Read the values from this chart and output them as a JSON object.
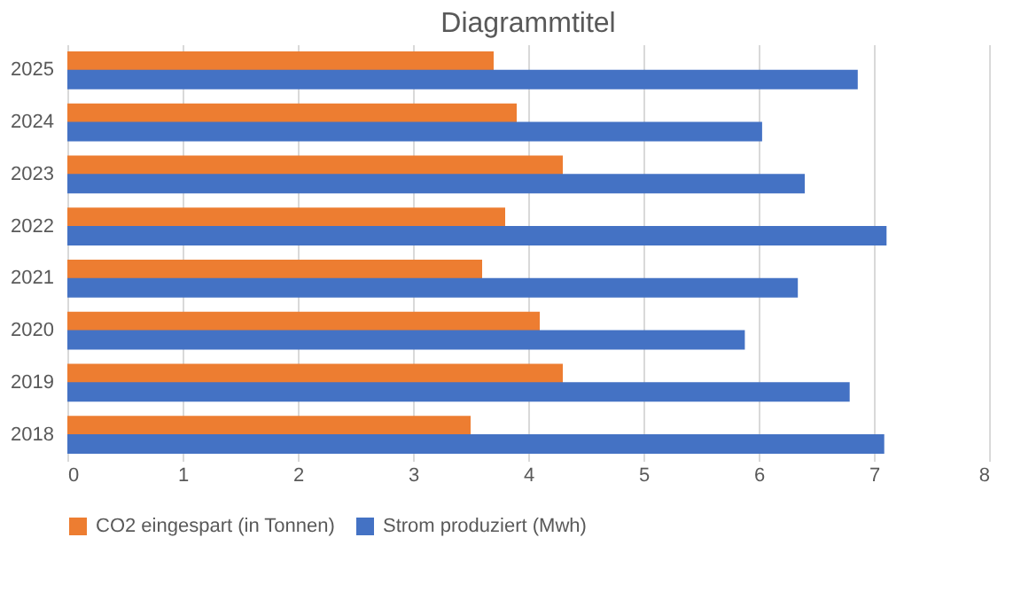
{
  "chart_data": {
    "type": "bar",
    "orientation": "horizontal",
    "title": "Diagrammtitel",
    "categories": [
      "2025",
      "2024",
      "2023",
      "2022",
      "2021",
      "2020",
      "2019",
      "2018"
    ],
    "series": [
      {
        "name": "CO2 eingespart (in Tonnen)",
        "color": "#ed7d31",
        "values": [
          3.7,
          3.9,
          4.3,
          3.8,
          3.6,
          4.1,
          4.3,
          3.5
        ]
      },
      {
        "name": "Strom produziert (Mwh)",
        "color": "#4472c4",
        "values": [
          6.86,
          6.03,
          6.4,
          7.11,
          6.34,
          5.88,
          6.79,
          7.09
        ]
      }
    ],
    "xlim": [
      0,
      8
    ],
    "xticks": [
      0,
      1,
      2,
      3,
      4,
      5,
      6,
      7,
      8
    ],
    "grid": "x",
    "legend": "bottom"
  }
}
